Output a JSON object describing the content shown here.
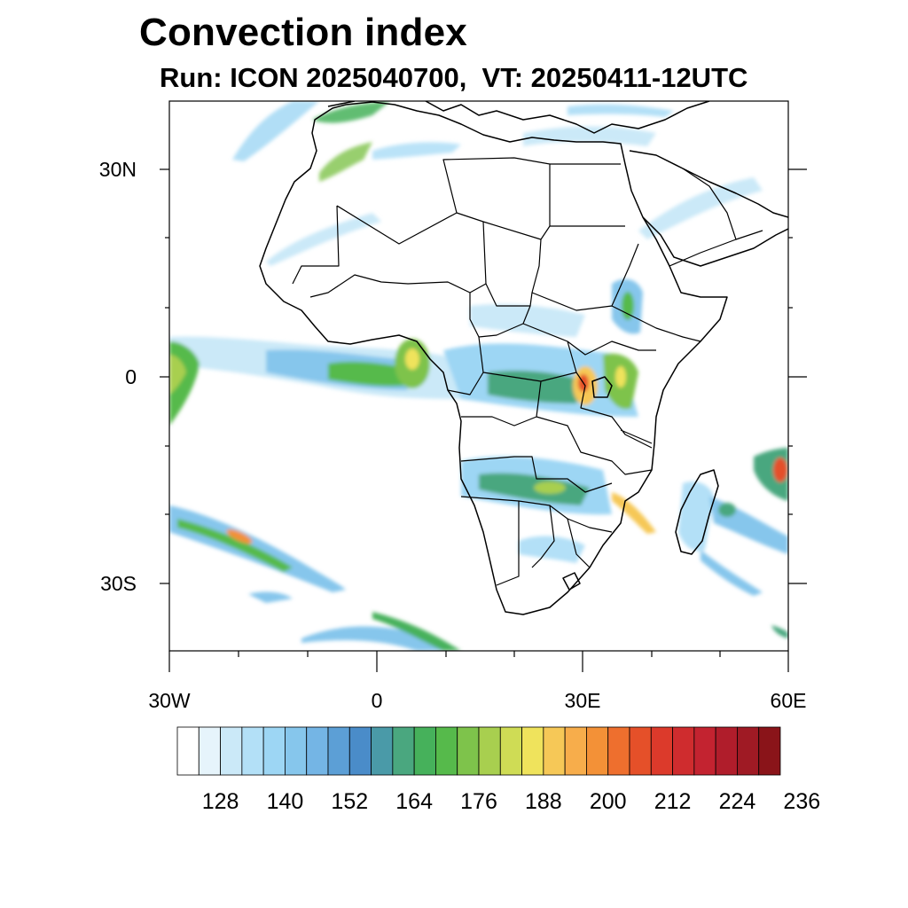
{
  "title": "Convection index",
  "subtitle": "Run: ICON 2025040700,  VT: 20250411-12UTC",
  "axes": {
    "lat_labels": [
      "30N",
      "0",
      "30S"
    ],
    "lon_labels": [
      "30W",
      "0",
      "30E",
      "60E"
    ]
  },
  "colorbar": {
    "colors": [
      "#ffffff",
      "#e6f4fb",
      "#cbe9f8",
      "#b3e0f7",
      "#9dd6f4",
      "#86c6ec",
      "#74b5e5",
      "#5c9fd6",
      "#4a8cc9",
      "#4a9aa8",
      "#4aa77f",
      "#46b15b",
      "#56ba4b",
      "#7ec34b",
      "#a8cf4f",
      "#cfdc55",
      "#efe35c",
      "#f6c857",
      "#f7ad4b",
      "#f39137",
      "#ee6f2e",
      "#e55029",
      "#dc3a2b",
      "#cf2c2e",
      "#c32330",
      "#b01d2b",
      "#9f1a24",
      "#8a1419"
    ],
    "labels": [
      "128",
      "140",
      "152",
      "164",
      "176",
      "188",
      "200",
      "212",
      "224",
      "236"
    ]
  }
}
